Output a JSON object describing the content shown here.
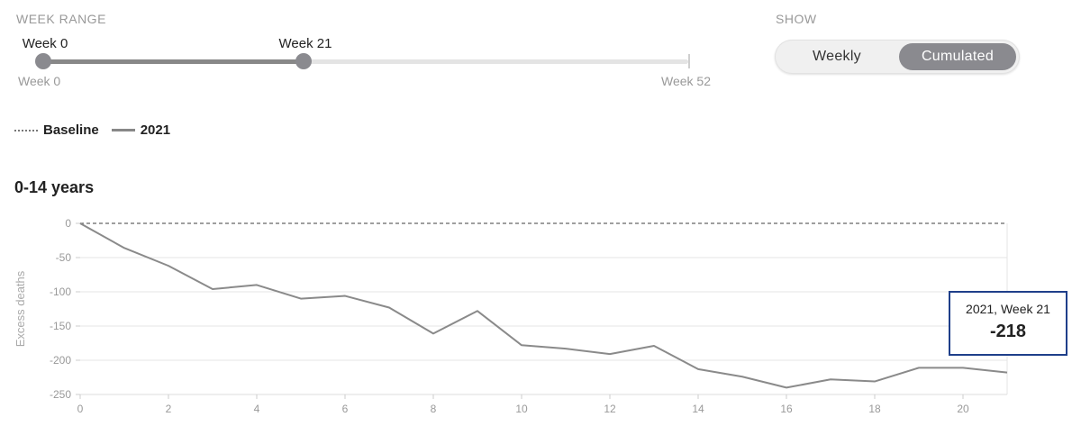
{
  "week_range": {
    "label": "WEEK RANGE",
    "start_label": "Week 0",
    "end_label": "Week 21",
    "min_label": "Week 0",
    "max_label": "Week 52",
    "min": 0,
    "max": 52,
    "start_value": 0,
    "end_value": 21
  },
  "show": {
    "label": "SHOW",
    "options": [
      "Weekly",
      "Cumulated"
    ],
    "selected": "Cumulated"
  },
  "legend": {
    "baseline_label": "Baseline",
    "series_label": "2021"
  },
  "tooltip": {
    "label": "2021, Week 21",
    "value": "-218"
  },
  "colors": {
    "series": "#8a8a8a",
    "baseline": "#666666",
    "grid": "#e6e6e6",
    "tooltip_border": "#1f3f8a",
    "toggle_active": "#8a8a8f"
  },
  "chart_data": {
    "type": "line",
    "title": "0-14 years",
    "xlabel": "",
    "ylabel": "Excess deaths",
    "xlim": [
      0,
      21
    ],
    "ylim": [
      -250,
      0
    ],
    "x_ticks": [
      0,
      2,
      4,
      6,
      8,
      10,
      12,
      14,
      16,
      18,
      20
    ],
    "y_ticks": [
      0,
      -50,
      -100,
      -150,
      -200,
      -250
    ],
    "grid": true,
    "baseline": 0,
    "series": [
      {
        "name": "2021",
        "x": [
          0,
          1,
          2,
          3,
          4,
          5,
          6,
          7,
          8,
          9,
          10,
          11,
          12,
          13,
          14,
          15,
          16,
          17,
          18,
          19,
          20,
          21
        ],
        "values": [
          0,
          -36,
          -62,
          -96,
          -90,
          -110,
          -106,
          -123,
          -161,
          -128,
          -178,
          -183,
          -191,
          -179,
          -213,
          -224,
          -240,
          -228,
          -231,
          -211,
          -211,
          -218
        ]
      }
    ]
  }
}
